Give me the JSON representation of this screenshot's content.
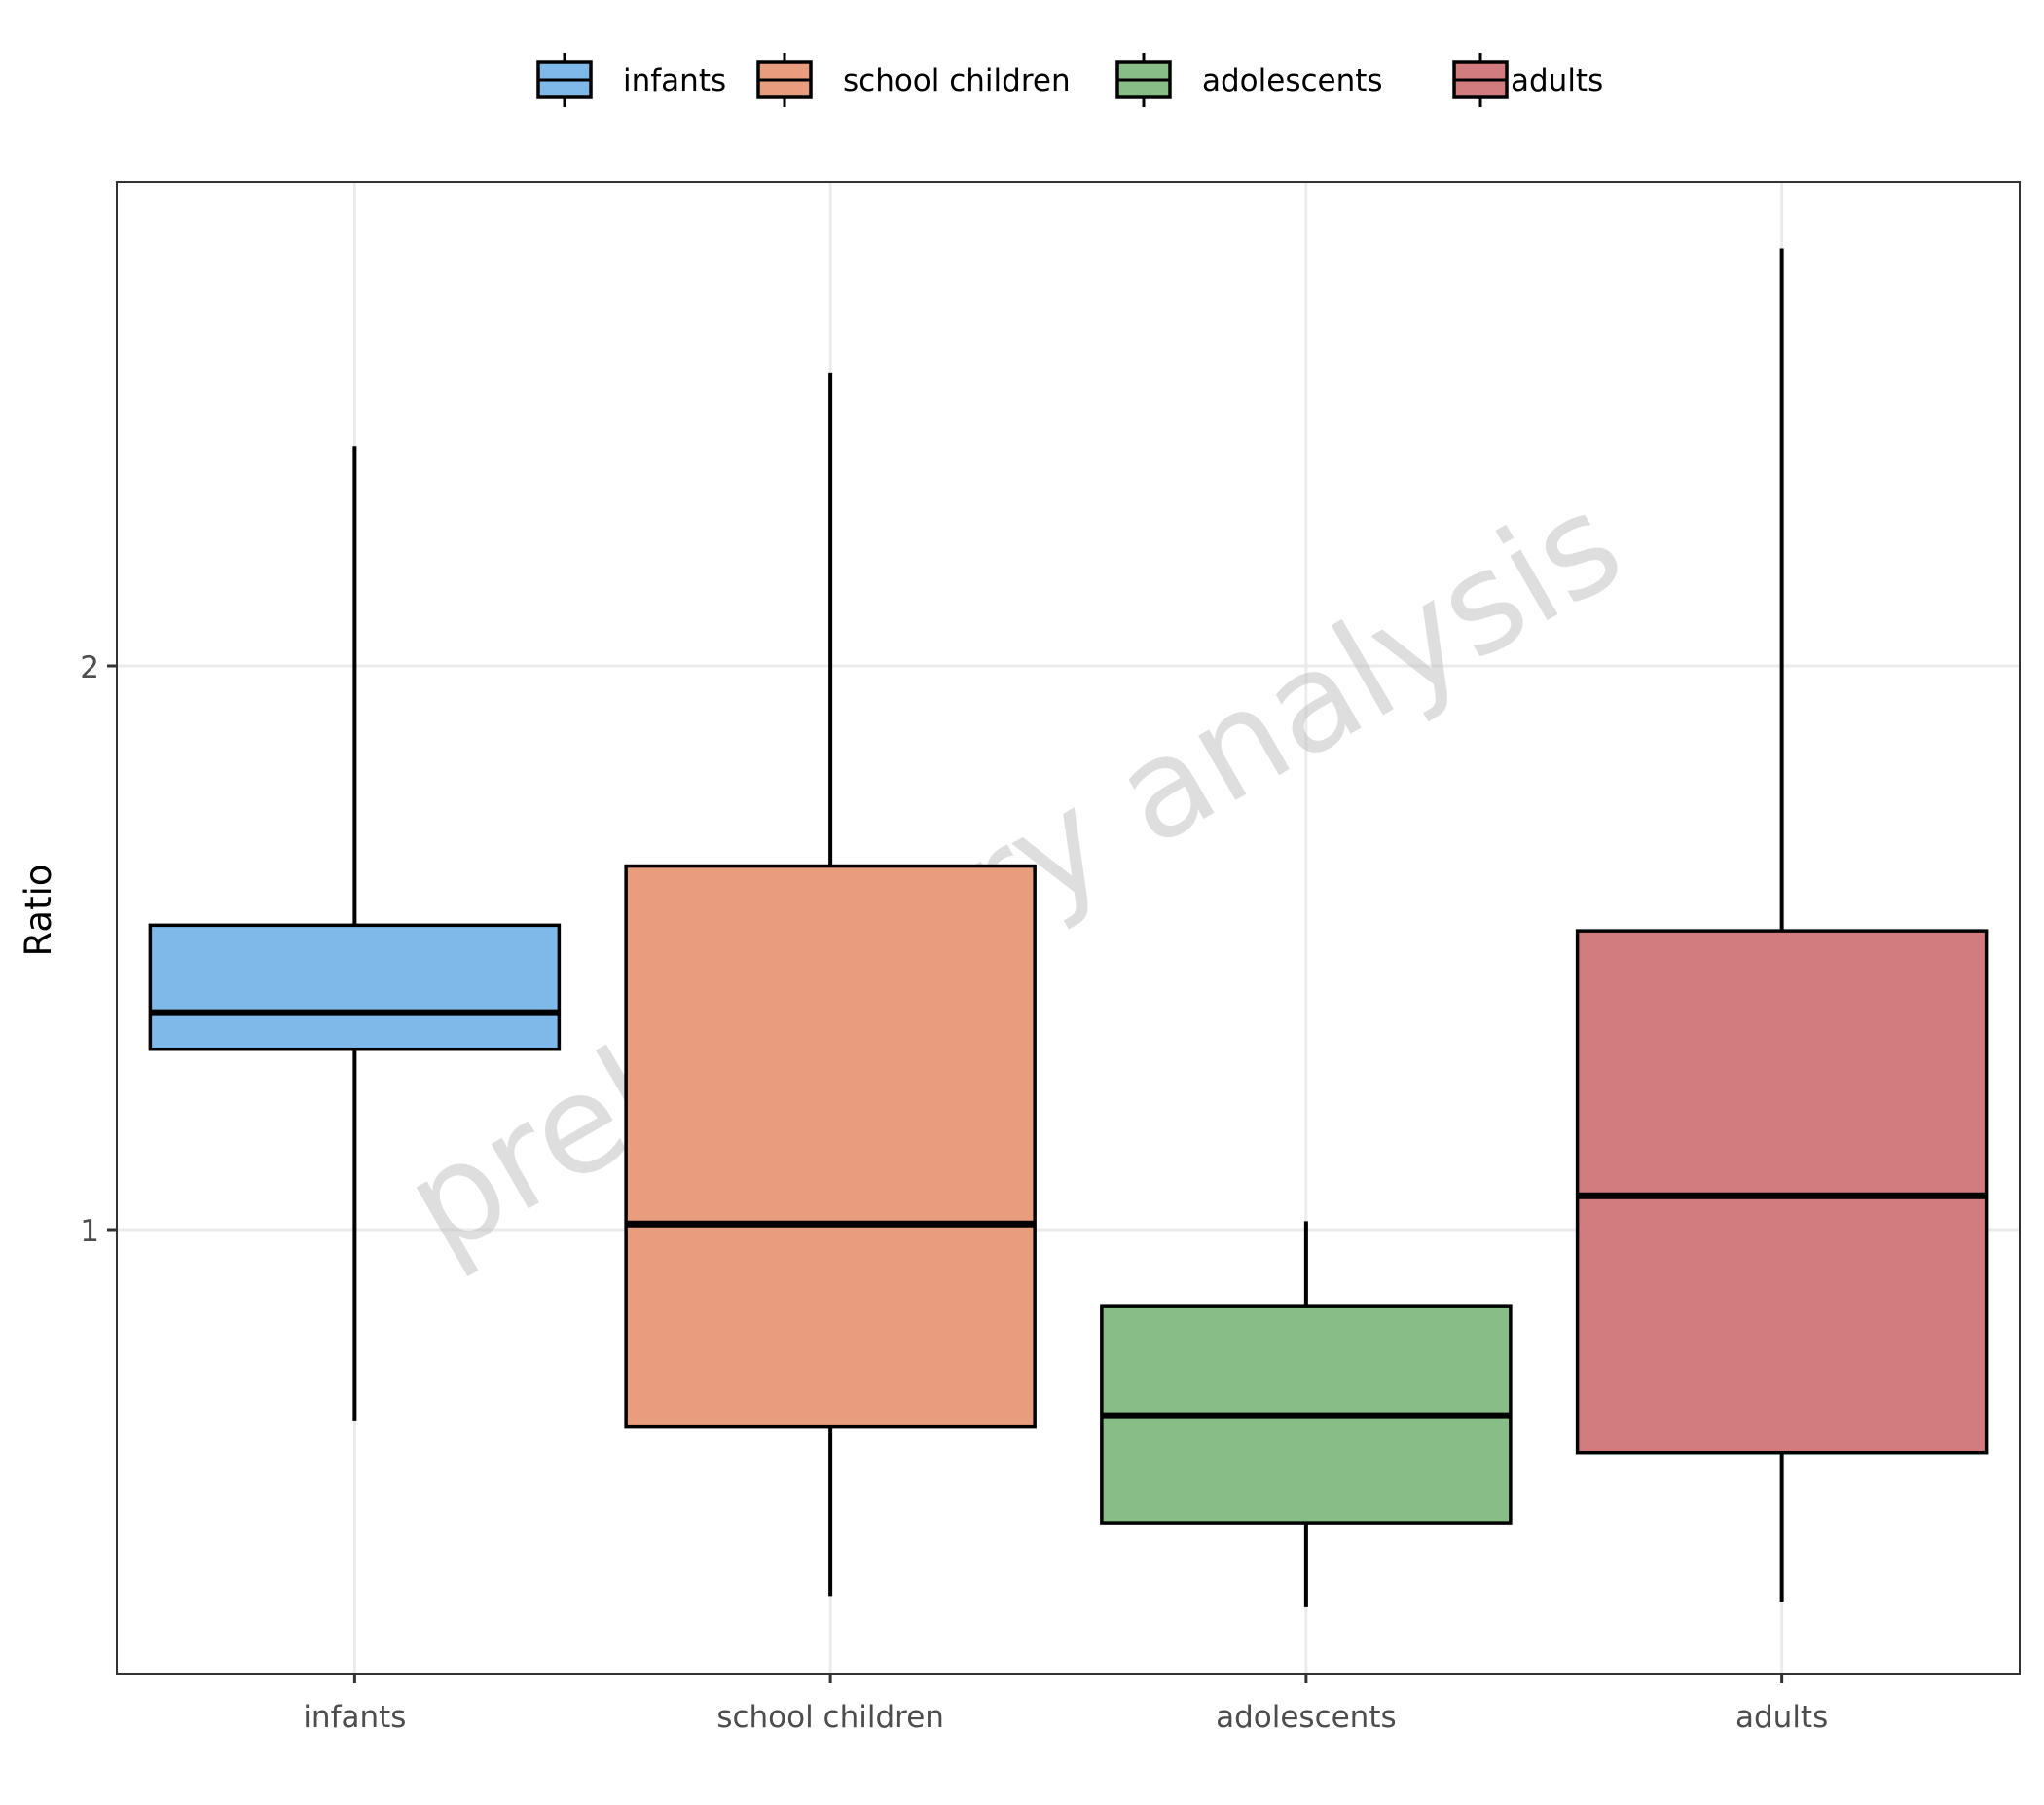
{
  "chart_data": {
    "type": "boxplot",
    "title": "",
    "xlabel": "",
    "ylabel": "Ratio",
    "categories": [
      "infants",
      "school children",
      "adolescents",
      "adults"
    ],
    "yticks": [
      1,
      2
    ],
    "ylim": [
      0.22,
      2.86
    ],
    "grid": true,
    "legend": {
      "position": "top",
      "entries": [
        "infants",
        "school children",
        "adolescents",
        "adults"
      ]
    },
    "watermark": "preliminary analysis",
    "series": [
      {
        "name": "infants",
        "color": "#7fb9e9",
        "whisker_low": 0.66,
        "q1": 1.32,
        "median": 1.385,
        "q3": 1.54,
        "whisker_high": 2.39
      },
      {
        "name": "school children",
        "color": "#e99d7f",
        "whisker_low": 0.35,
        "q1": 0.65,
        "median": 1.01,
        "q3": 1.645,
        "whisker_high": 2.52
      },
      {
        "name": "adolescents",
        "color": "#89bd87",
        "whisker_low": 0.33,
        "q1": 0.48,
        "median": 0.67,
        "q3": 0.865,
        "whisker_high": 1.015
      },
      {
        "name": "adults",
        "color": "#d37c7f",
        "whisker_low": 0.34,
        "q1": 0.605,
        "median": 1.06,
        "q3": 1.53,
        "whisker_high": 2.74
      }
    ]
  }
}
